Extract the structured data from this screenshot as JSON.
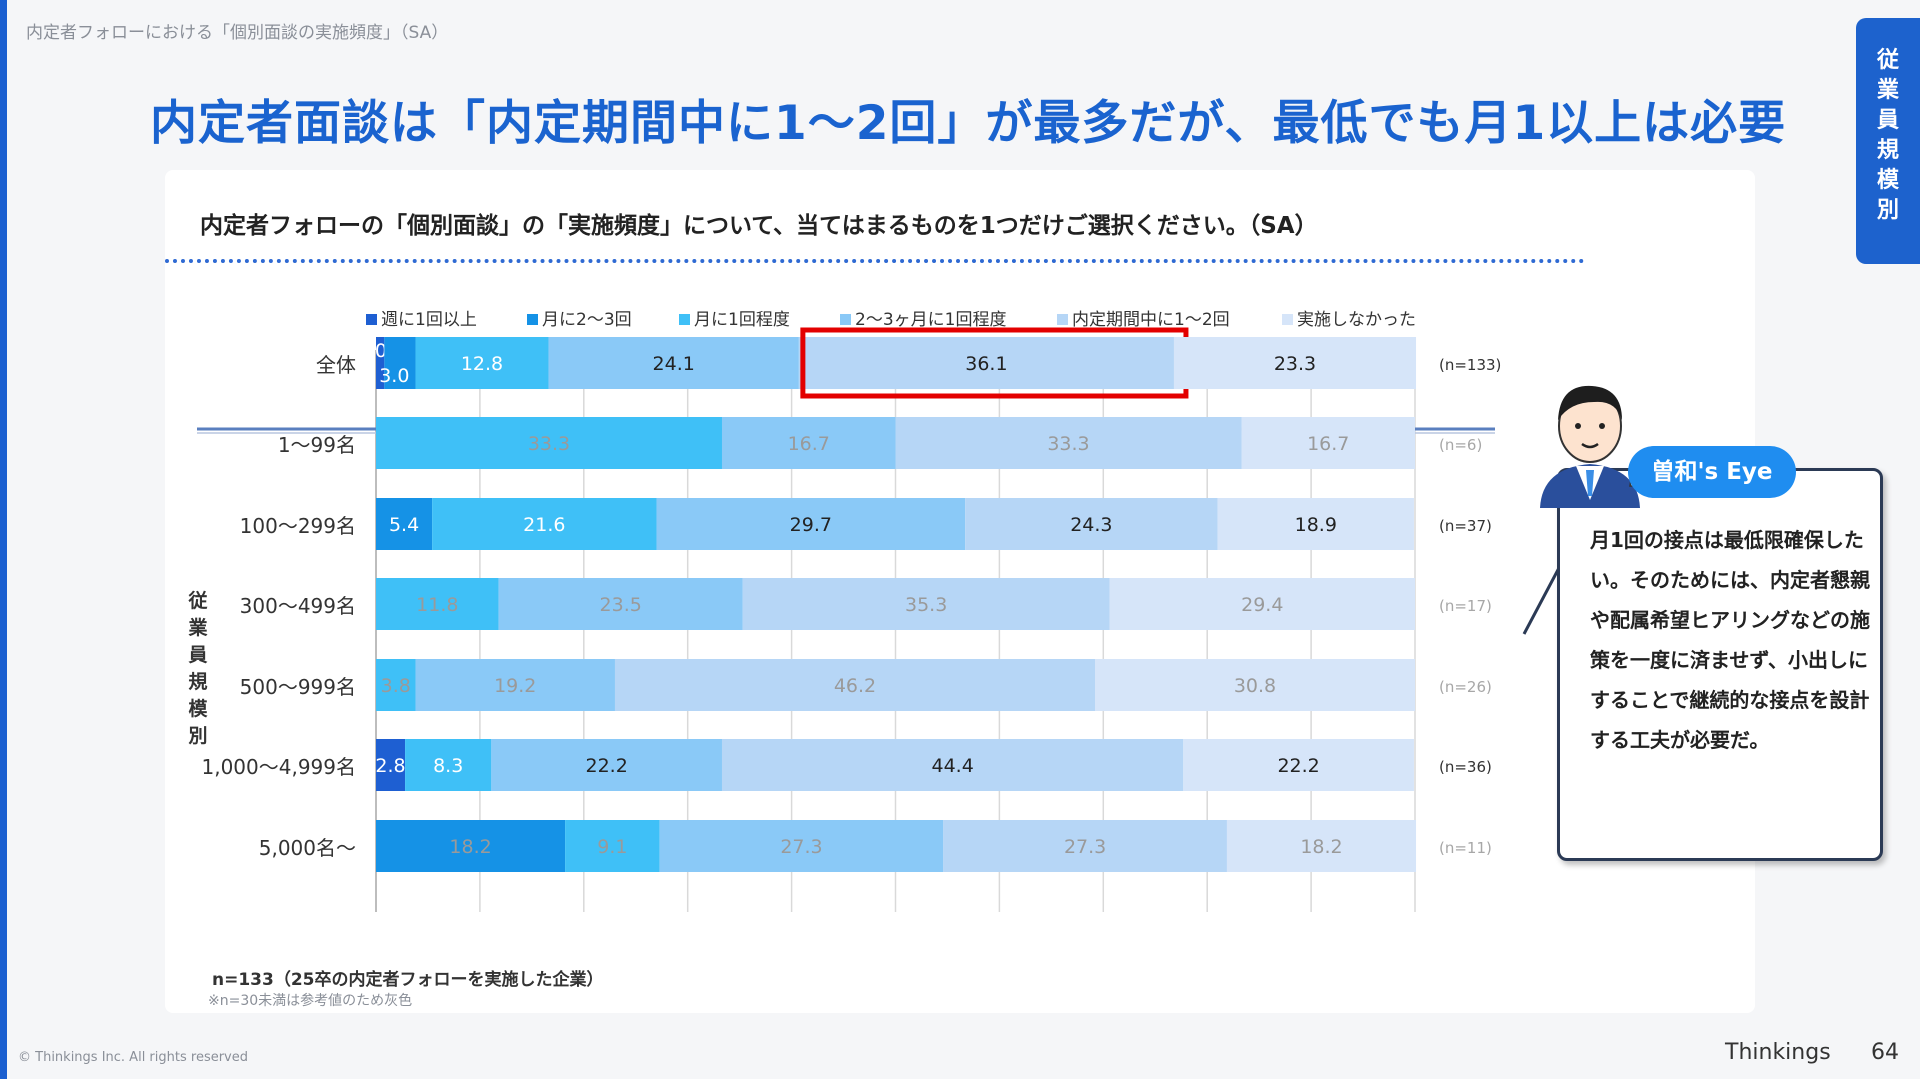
{
  "breadcrumb": "内定者フォローにおける「個別面談の実施頻度」（SA）",
  "title": "内定者面談は「内定期間中に1〜2回」が最多だが、最低でも月1以上は必要",
  "side_tab": [
    "従",
    "業",
    "員",
    "規",
    "模",
    "別"
  ],
  "question": "内定者フォローの「個別面談」の「実施頻度」について、当てはまるものを1つだけご選択ください。（SA）",
  "group_label": [
    "従",
    "業",
    "員",
    "規",
    "模",
    "別"
  ],
  "footnote_n": "n=133（25卒の内定者フォローを実施した企業）",
  "footnote_note": "※n=30未満は参考値のため灰色",
  "copyright": "© Thinkings Inc. All rights reserved",
  "brand": "Thinkings",
  "page_number": "64",
  "eye": {
    "badge": "曽和's Eye",
    "text": "月1回の接点は最低限確保したい。そのためには、内定者懇親や配属希望ヒアリングなどの施策を一度に済ませず、小出しにすることで継続的な接点を設計する工夫が必要だ。"
  },
  "chart_data": {
    "type": "bar",
    "orientation": "horizontal",
    "stacked": "100%",
    "xlim": [
      0,
      100
    ],
    "series": [
      {
        "name": "週に1回以上",
        "color": "#1e5fd2"
      },
      {
        "name": "月に2〜3回",
        "color": "#1592e6"
      },
      {
        "name": "月に1回程度",
        "color": "#3fc0f7"
      },
      {
        "name": "2〜3ヶ月に1回程度",
        "color": "#8ac9f7"
      },
      {
        "name": "内定期間中に1〜2回",
        "color": "#b6d6f6"
      },
      {
        "name": "実施しなかった",
        "color": "#d6e5f9"
      }
    ],
    "rows": [
      {
        "label": "全体",
        "n": "(n=133)",
        "values": [
          0.8,
          3.0,
          12.8,
          24.1,
          36.1,
          23.3
        ],
        "reference": false,
        "highlight_index": 4
      },
      {
        "label": "1〜99名",
        "n": "(n=6)",
        "values": [
          0,
          0,
          33.3,
          16.7,
          33.3,
          16.7
        ],
        "reference": true
      },
      {
        "label": "100〜299名",
        "n": "(n=37)",
        "values": [
          0,
          5.4,
          21.6,
          29.7,
          24.3,
          18.9
        ],
        "reference": false
      },
      {
        "label": "300〜499名",
        "n": "(n=17)",
        "values": [
          0,
          0,
          11.8,
          23.5,
          35.3,
          29.4
        ],
        "reference": true
      },
      {
        "label": "500〜999名",
        "n": "(n=26)",
        "values": [
          0,
          0,
          3.8,
          19.2,
          46.2,
          30.8
        ],
        "reference": true
      },
      {
        "label": "1,000〜4,999名",
        "n": "(n=36)",
        "values": [
          2.8,
          0,
          8.3,
          22.2,
          44.4,
          22.2
        ],
        "reference": false
      },
      {
        "label": "5,000名〜",
        "n": "(n=11)",
        "values": [
          0,
          18.2,
          9.1,
          27.3,
          27.3,
          18.2
        ],
        "reference": true
      }
    ]
  }
}
